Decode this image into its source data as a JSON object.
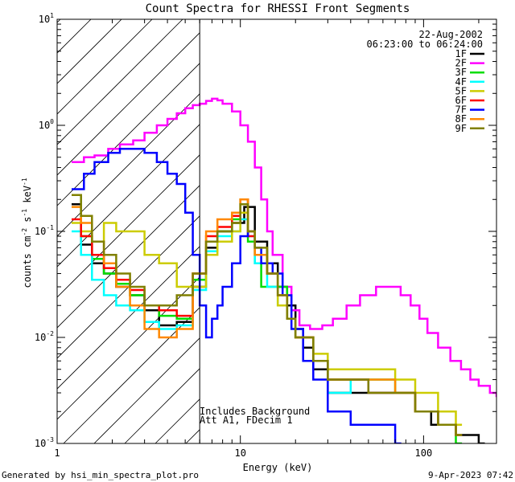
{
  "chart_data": {
    "type": "line",
    "title": "Count Spectra for RHESSI Front Segments",
    "xlabel": "Energy (keV)",
    "ylabel_parts": {
      "a": "counts cm",
      "b": "-2",
      "c": " s",
      "d": "-1",
      "e": " keV",
      "f": "-1"
    },
    "xscale": "log",
    "yscale": "log",
    "xlim": [
      1,
      250
    ],
    "ylim": [
      0.001,
      10
    ],
    "x_ticks": [
      {
        "v": 1,
        "label": "1"
      },
      {
        "v": 10,
        "label": "10"
      },
      {
        "v": 100,
        "label": "100"
      }
    ],
    "y_ticks": [
      {
        "v": 0.001,
        "base": "10",
        "exp": "-3"
      },
      {
        "v": 0.01,
        "base": "10",
        "exp": "-2"
      },
      {
        "v": 0.1,
        "base": "10",
        "exp": "-1"
      },
      {
        "v": 1,
        "base": "10",
        "exp": "0"
      },
      {
        "v": 10,
        "base": "10",
        "exp": "1"
      }
    ],
    "date": "22-Aug-2002",
    "time_range": "06:23:00 to 06:24:00",
    "threshold_keV": 6,
    "annotations": [
      "Includes Background",
      "Att A1, FDecim 1"
    ],
    "series": [
      {
        "name": "1F",
        "color": "#000000",
        "points": [
          [
            1.2,
            0.18
          ],
          [
            1.35,
            0.075
          ],
          [
            1.55,
            0.05
          ],
          [
            1.8,
            0.04
          ],
          [
            2.1,
            0.03
          ],
          [
            2.5,
            0.025
          ],
          [
            3.0,
            0.018
          ],
          [
            3.6,
            0.013
          ],
          [
            4.5,
            0.014
          ],
          [
            5.5,
            0.03
          ],
          [
            6.5,
            0.07
          ],
          [
            7.5,
            0.1
          ],
          [
            9,
            0.12
          ],
          [
            10.5,
            0.17
          ],
          [
            12,
            0.08
          ],
          [
            14,
            0.05
          ],
          [
            16,
            0.03
          ],
          [
            18,
            0.02
          ],
          [
            20,
            0.012
          ],
          [
            22,
            0.008
          ],
          [
            25,
            0.005
          ],
          [
            30,
            0.003
          ],
          [
            40,
            0.003
          ],
          [
            50,
            0.003
          ],
          [
            70,
            0.003
          ],
          [
            90,
            0.002
          ],
          [
            110,
            0.0015
          ],
          [
            150,
            0.0012
          ],
          [
            200,
            0.001
          ]
        ]
      },
      {
        "name": "2F",
        "color": "#ff00ff",
        "points": [
          [
            1.2,
            0.45
          ],
          [
            1.4,
            0.5
          ],
          [
            1.6,
            0.52
          ],
          [
            1.9,
            0.6
          ],
          [
            2.2,
            0.66
          ],
          [
            2.6,
            0.72
          ],
          [
            3.0,
            0.85
          ],
          [
            3.5,
            1.0
          ],
          [
            4.0,
            1.15
          ],
          [
            4.5,
            1.3
          ],
          [
            5.0,
            1.45
          ],
          [
            5.5,
            1.55
          ],
          [
            6.0,
            1.6
          ],
          [
            6.5,
            1.7
          ],
          [
            7.0,
            1.78
          ],
          [
            7.5,
            1.72
          ],
          [
            8.0,
            1.6
          ],
          [
            9.0,
            1.35
          ],
          [
            10,
            1.0
          ],
          [
            11,
            0.7
          ],
          [
            12,
            0.4
          ],
          [
            13,
            0.2
          ],
          [
            14,
            0.1
          ],
          [
            15,
            0.06
          ],
          [
            17,
            0.03
          ],
          [
            19,
            0.018
          ],
          [
            21,
            0.013
          ],
          [
            24,
            0.012
          ],
          [
            28,
            0.013
          ],
          [
            32,
            0.015
          ],
          [
            38,
            0.02
          ],
          [
            45,
            0.025
          ],
          [
            55,
            0.03
          ],
          [
            65,
            0.03
          ],
          [
            75,
            0.025
          ],
          [
            85,
            0.02
          ],
          [
            95,
            0.015
          ],
          [
            105,
            0.011
          ],
          [
            120,
            0.008
          ],
          [
            140,
            0.006
          ],
          [
            160,
            0.005
          ],
          [
            180,
            0.004
          ],
          [
            200,
            0.0035
          ],
          [
            230,
            0.003
          ],
          [
            250,
            0.0028
          ]
        ]
      },
      {
        "name": "3F",
        "color": "#00dd00",
        "points": [
          [
            1.2,
            0.22
          ],
          [
            1.35,
            0.09
          ],
          [
            1.55,
            0.055
          ],
          [
            1.8,
            0.04
          ],
          [
            2.1,
            0.032
          ],
          [
            2.5,
            0.025
          ],
          [
            3.0,
            0.02
          ],
          [
            3.6,
            0.016
          ],
          [
            4.5,
            0.015
          ],
          [
            5.5,
            0.035
          ],
          [
            6.5,
            0.08
          ],
          [
            7.5,
            0.1
          ],
          [
            9,
            0.13
          ],
          [
            10,
            0.2
          ],
          [
            11,
            0.08
          ],
          [
            12,
            0.05
          ],
          [
            13,
            0.03
          ],
          [
            15,
            0.03
          ],
          [
            18,
            0.015
          ],
          [
            20,
            0.01
          ],
          [
            25,
            0.006
          ],
          [
            30,
            0.004
          ],
          [
            40,
            0.004
          ],
          [
            50,
            0.004
          ],
          [
            70,
            0.003
          ],
          [
            90,
            0.002
          ],
          [
            120,
            0.0015
          ],
          [
            150,
            0.001
          ]
        ]
      },
      {
        "name": "4F",
        "color": "#00ffff",
        "points": [
          [
            1.2,
            0.1
          ],
          [
            1.35,
            0.06
          ],
          [
            1.55,
            0.035
          ],
          [
            1.8,
            0.025
          ],
          [
            2.1,
            0.02
          ],
          [
            2.5,
            0.018
          ],
          [
            3.0,
            0.014
          ],
          [
            3.6,
            0.012
          ],
          [
            4.5,
            0.013
          ],
          [
            5.5,
            0.028
          ],
          [
            6.5,
            0.065
          ],
          [
            7.5,
            0.09
          ],
          [
            9,
            0.1
          ],
          [
            10,
            0.13
          ],
          [
            11,
            0.09
          ],
          [
            12,
            0.05
          ],
          [
            14,
            0.03
          ],
          [
            16,
            0.02
          ],
          [
            18,
            0.015
          ],
          [
            20,
            0.01
          ],
          [
            25,
            0.006
          ],
          [
            30,
            0.003
          ],
          [
            40,
            0.004
          ],
          [
            50,
            0.003
          ],
          [
            70,
            0.003
          ],
          [
            90,
            0.002
          ],
          [
            120,
            0.0015
          ],
          [
            150,
            0.0012
          ]
        ]
      },
      {
        "name": "5F",
        "color": "#cccc00",
        "points": [
          [
            1.2,
            0.12
          ],
          [
            1.35,
            0.1
          ],
          [
            1.55,
            0.08
          ],
          [
            1.8,
            0.12
          ],
          [
            2.1,
            0.1
          ],
          [
            2.5,
            0.1
          ],
          [
            3.0,
            0.06
          ],
          [
            3.6,
            0.05
          ],
          [
            4.5,
            0.03
          ],
          [
            5.5,
            0.03
          ],
          [
            6.5,
            0.06
          ],
          [
            7.5,
            0.08
          ],
          [
            9,
            0.1
          ],
          [
            10,
            0.15
          ],
          [
            11,
            0.1
          ],
          [
            12,
            0.06
          ],
          [
            14,
            0.04
          ],
          [
            16,
            0.02
          ],
          [
            18,
            0.015
          ],
          [
            20,
            0.01
          ],
          [
            25,
            0.007
          ],
          [
            30,
            0.005
          ],
          [
            40,
            0.005
          ],
          [
            50,
            0.005
          ],
          [
            70,
            0.004
          ],
          [
            90,
            0.003
          ],
          [
            120,
            0.002
          ],
          [
            150,
            0.0015
          ]
        ]
      },
      {
        "name": "6F",
        "color": "#ff0000",
        "points": [
          [
            1.2,
            0.13
          ],
          [
            1.35,
            0.09
          ],
          [
            1.55,
            0.06
          ],
          [
            1.8,
            0.045
          ],
          [
            2.1,
            0.035
          ],
          [
            2.5,
            0.028
          ],
          [
            3.0,
            0.02
          ],
          [
            3.6,
            0.018
          ],
          [
            4.5,
            0.016
          ],
          [
            5.5,
            0.04
          ],
          [
            6.5,
            0.09
          ],
          [
            7.5,
            0.11
          ],
          [
            9,
            0.14
          ],
          [
            10,
            0.2
          ],
          [
            11,
            0.09
          ],
          [
            12,
            0.06
          ],
          [
            14,
            0.04
          ],
          [
            16,
            0.025
          ],
          [
            18,
            0.015
          ],
          [
            20,
            0.01
          ],
          [
            25,
            0.006
          ],
          [
            30,
            0.004
          ],
          [
            40,
            0.004
          ],
          [
            50,
            0.003
          ],
          [
            70,
            0.003
          ],
          [
            90,
            0.002
          ],
          [
            120,
            0.0015
          ],
          [
            150,
            0.0012
          ]
        ]
      },
      {
        "name": "7F",
        "color": "#0000ff",
        "points": [
          [
            1.2,
            0.25
          ],
          [
            1.4,
            0.35
          ],
          [
            1.6,
            0.45
          ],
          [
            1.9,
            0.55
          ],
          [
            2.2,
            0.6
          ],
          [
            2.6,
            0.6
          ],
          [
            3.0,
            0.55
          ],
          [
            3.5,
            0.45
          ],
          [
            4.0,
            0.35
          ],
          [
            4.5,
            0.28
          ],
          [
            5.0,
            0.15
          ],
          [
            5.5,
            0.06
          ],
          [
            6.0,
            0.02
          ],
          [
            6.5,
            0.01
          ],
          [
            7.0,
            0.015
          ],
          [
            7.5,
            0.02
          ],
          [
            8.0,
            0.03
          ],
          [
            9.0,
            0.05
          ],
          [
            10,
            0.09
          ],
          [
            11,
            0.1
          ],
          [
            12,
            0.07
          ],
          [
            13,
            0.05
          ],
          [
            15,
            0.04
          ],
          [
            17,
            0.025
          ],
          [
            19,
            0.012
          ],
          [
            22,
            0.006
          ],
          [
            25,
            0.004
          ],
          [
            30,
            0.002
          ],
          [
            40,
            0.0015
          ],
          [
            50,
            0.0015
          ],
          [
            70,
            0.001
          ]
        ]
      },
      {
        "name": "8F",
        "color": "#ff8800",
        "points": [
          [
            1.2,
            0.17
          ],
          [
            1.35,
            0.12
          ],
          [
            1.55,
            0.08
          ],
          [
            1.8,
            0.05
          ],
          [
            2.1,
            0.03
          ],
          [
            2.5,
            0.02
          ],
          [
            3.0,
            0.012
          ],
          [
            3.6,
            0.01
          ],
          [
            4.5,
            0.012
          ],
          [
            5.5,
            0.04
          ],
          [
            6.5,
            0.1
          ],
          [
            7.5,
            0.13
          ],
          [
            9,
            0.15
          ],
          [
            10,
            0.2
          ],
          [
            11,
            0.1
          ],
          [
            12,
            0.06
          ],
          [
            14,
            0.04
          ],
          [
            16,
            0.025
          ],
          [
            18,
            0.015
          ],
          [
            20,
            0.01
          ],
          [
            25,
            0.006
          ],
          [
            30,
            0.004
          ],
          [
            40,
            0.004
          ],
          [
            50,
            0.004
          ],
          [
            70,
            0.003
          ],
          [
            90,
            0.002
          ],
          [
            120,
            0.0015
          ],
          [
            150,
            0.0012
          ]
        ]
      },
      {
        "name": "9F",
        "color": "#808000",
        "points": [
          [
            1.2,
            0.22
          ],
          [
            1.35,
            0.14
          ],
          [
            1.55,
            0.08
          ],
          [
            1.8,
            0.06
          ],
          [
            2.1,
            0.04
          ],
          [
            2.5,
            0.03
          ],
          [
            3.0,
            0.02
          ],
          [
            3.6,
            0.02
          ],
          [
            4.5,
            0.025
          ],
          [
            5.5,
            0.04
          ],
          [
            6.5,
            0.08
          ],
          [
            7.5,
            0.1
          ],
          [
            9,
            0.12
          ],
          [
            10,
            0.18
          ],
          [
            11,
            0.1
          ],
          [
            12,
            0.07
          ],
          [
            14,
            0.04
          ],
          [
            16,
            0.025
          ],
          [
            18,
            0.015
          ],
          [
            20,
            0.01
          ],
          [
            25,
            0.006
          ],
          [
            30,
            0.004
          ],
          [
            40,
            0.004
          ],
          [
            50,
            0.003
          ],
          [
            70,
            0.003
          ],
          [
            90,
            0.002
          ],
          [
            120,
            0.0015
          ],
          [
            150,
            0.0012
          ]
        ]
      }
    ]
  },
  "footer": {
    "generated": "Generated by hsi_min_spectra_plot.pro",
    "timestamp": "9-Apr-2023 07:42"
  }
}
